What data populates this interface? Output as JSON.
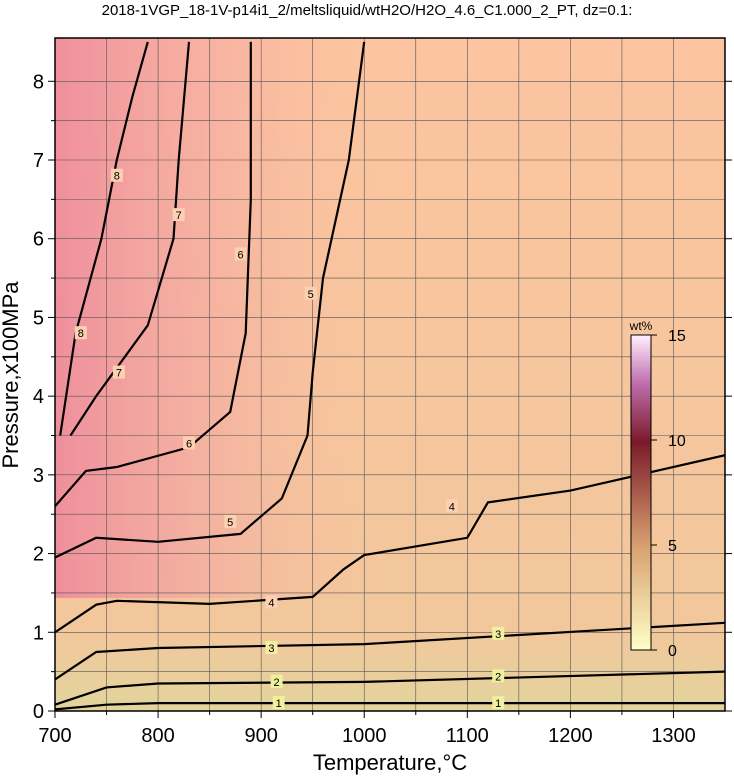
{
  "chart_data": {
    "type": "contour",
    "title": "2018-1VGP_18-1V-p14i1_2/meltsliquid/wtH2O/H2O_4.6_C1.000_2_PT, dz=0.1:",
    "x_label": "Temperature,°C",
    "y_label": "Pressure,x100MPa",
    "xlim": [
      700,
      1350
    ],
    "ylim": [
      0,
      8.55
    ],
    "xticks": [
      700,
      800,
      900,
      1000,
      1100,
      1200,
      1300
    ],
    "yticks": [
      0,
      1,
      2,
      3,
      4,
      5,
      6,
      7,
      8
    ],
    "xminorticks": [
      750,
      850,
      950,
      1050,
      1150,
      1250
    ],
    "yminorticks": [
      0.5,
      1.5,
      2.5,
      3.5,
      4.5,
      5.5,
      6.5,
      7.5
    ],
    "grid": true,
    "line_color": "#000000",
    "contours": [
      {
        "level": 1,
        "x": [
          700,
          750,
          800,
          1350
        ],
        "y": [
          0.02,
          0.08,
          0.1,
          0.1
        ],
        "label_x": [
          917,
          1130
        ],
        "label_y": [
          0.1,
          0.1
        ]
      },
      {
        "level": 2,
        "x": [
          700,
          750,
          800,
          1000,
          1350
        ],
        "y": [
          0.08,
          0.3,
          0.35,
          0.37,
          0.5
        ],
        "label_x": [
          915,
          1130
        ],
        "label_y": [
          0.37,
          0.44
        ]
      },
      {
        "level": 3,
        "x": [
          700,
          740,
          800,
          1000,
          1350
        ],
        "y": [
          0.4,
          0.75,
          0.8,
          0.85,
          1.12
        ],
        "label_x": [
          910,
          1130
        ],
        "label_y": [
          0.8,
          0.98
        ]
      },
      {
        "level": 4,
        "x": [
          700,
          740,
          760,
          850,
          950,
          980,
          1000,
          1100,
          1120,
          1200,
          1350
        ],
        "y": [
          1.0,
          1.35,
          1.4,
          1.36,
          1.45,
          1.8,
          1.98,
          2.2,
          2.65,
          2.8,
          3.25
        ],
        "label_x": [
          910,
          1085
        ],
        "label_y": [
          1.38,
          2.6
        ]
      },
      {
        "level": 5,
        "x": [
          700,
          740,
          800,
          880,
          920,
          945,
          950,
          960,
          985,
          1000
        ],
        "y": [
          1.95,
          2.2,
          2.15,
          2.25,
          2.7,
          3.5,
          4.3,
          5.5,
          7.0,
          8.5
        ],
        "label_x": [
          870,
          948
        ],
        "label_y": [
          2.4,
          5.3
        ]
      },
      {
        "level": 6,
        "x": [
          700,
          730,
          760,
          830,
          870,
          885,
          890,
          890
        ],
        "y": [
          2.6,
          3.05,
          3.1,
          3.35,
          3.8,
          4.8,
          6.5,
          8.5
        ],
        "label_x": [
          830,
          880
        ],
        "label_y": [
          3.4,
          5.8
        ]
      },
      {
        "level": 7,
        "x": [
          715,
          740,
          790,
          815,
          820,
          830
        ],
        "y": [
          3.5,
          4.0,
          4.9,
          6.0,
          7.0,
          8.5
        ],
        "label_x": [
          762,
          820
        ],
        "label_y": [
          4.3,
          6.3
        ]
      },
      {
        "level": 8,
        "x": [
          705,
          720,
          745,
          760,
          775,
          790
        ],
        "y": [
          3.5,
          4.8,
          6.0,
          7.0,
          7.8,
          8.5
        ],
        "label_x": [
          725,
          760
        ],
        "label_y": [
          4.8,
          6.8
        ]
      }
    ],
    "colorbar": {
      "label": "wt%",
      "lim": [
        0,
        15
      ],
      "ticks": [
        0,
        5,
        10,
        15
      ]
    }
  }
}
